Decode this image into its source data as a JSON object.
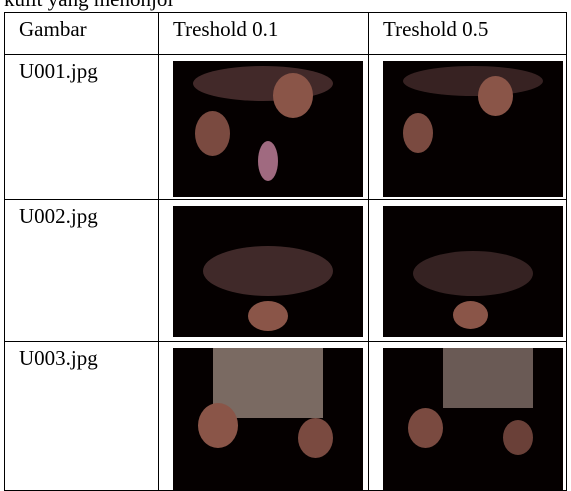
{
  "caption_fragment": "kulit yang menonjol",
  "table": {
    "header": [
      "Gambar",
      "Treshold 0.1",
      "Treshold 0.5"
    ],
    "rows": [
      [
        "U001.jpg"
      ],
      [
        "U002.jpg"
      ],
      [
        "U003.jpg"
      ]
    ]
  }
}
